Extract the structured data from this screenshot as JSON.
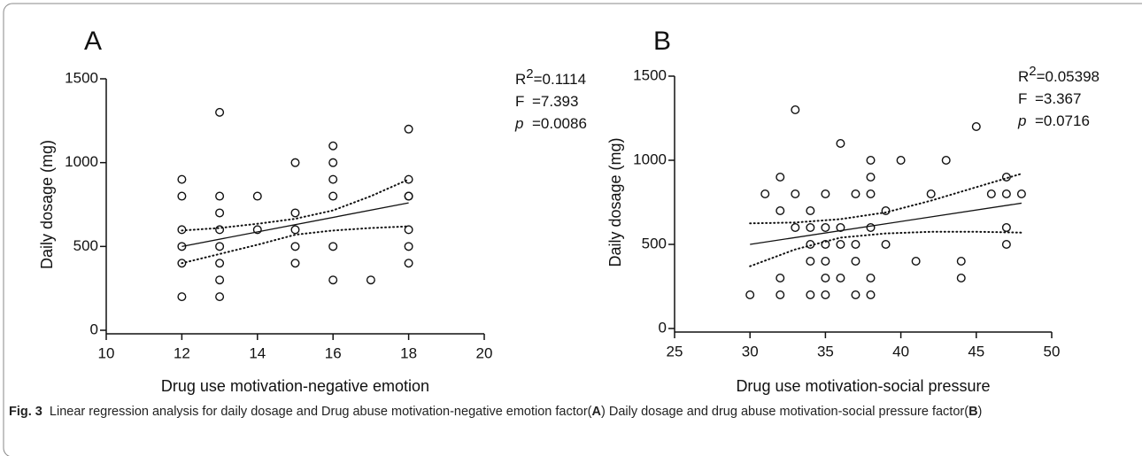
{
  "chart_data": [
    {
      "type": "scatter",
      "panel": "A",
      "x_label": "Drug use motivation-negative emotion",
      "y_label": "Daily dosage (mg)",
      "xlim": [
        10,
        20
      ],
      "ylim": [
        0,
        1500
      ],
      "xticks": [
        10,
        12,
        14,
        16,
        18,
        20
      ],
      "yticks": [
        0,
        500,
        1000,
        1500
      ],
      "stats": [
        {
          "symbol": "R",
          "sup": "2",
          "value": "=0.1114"
        },
        {
          "symbol": "F",
          "value": "=7.393"
        },
        {
          "symbol": "p",
          "italic": true,
          "value": "=0.0086"
        }
      ],
      "series": [
        {
          "x": [
            12,
            12,
            12,
            12,
            12,
            12,
            13,
            13,
            13,
            13,
            13,
            13,
            13,
            13,
            14,
            14,
            15,
            15,
            15,
            15,
            15,
            16,
            16,
            16,
            16,
            16,
            16,
            17,
            18,
            18,
            18,
            18,
            18,
            18,
            18
          ],
          "values": [
            900,
            800,
            600,
            500,
            400,
            200,
            1300,
            800,
            700,
            600,
            500,
            400,
            300,
            200,
            800,
            600,
            1000,
            700,
            600,
            500,
            400,
            1100,
            1000,
            900,
            800,
            500,
            300,
            300,
            1200,
            900,
            800,
            800,
            600,
            500,
            400
          ]
        }
      ],
      "fit": {
        "x": [
          12,
          18
        ],
        "values": [
          500,
          760
        ]
      },
      "ci_upper": {
        "x": [
          12,
          13,
          14,
          15,
          16,
          17,
          18
        ],
        "values": [
          595,
          610,
          635,
          665,
          715,
          800,
          900
        ]
      },
      "ci_lower": {
        "x": [
          12,
          13,
          14,
          15,
          16,
          17,
          18
        ],
        "values": [
          400,
          455,
          510,
          570,
          595,
          610,
          620
        ]
      }
    },
    {
      "type": "scatter",
      "panel": "B",
      "x_label": "Drug use motivation-social pressure",
      "y_label": "Daily dosage (mg)",
      "xlim": [
        25,
        50
      ],
      "ylim": [
        0,
        1500
      ],
      "xticks": [
        25,
        30,
        35,
        40,
        45,
        50
      ],
      "yticks": [
        0,
        500,
        1000,
        1500
      ],
      "stats": [
        {
          "symbol": "R",
          "sup": "2",
          "value": "=0.05398"
        },
        {
          "symbol": "F",
          "value": "=3.367"
        },
        {
          "symbol": "p",
          "italic": true,
          "value": "=0.0716"
        }
      ],
      "series": [
        {
          "x": [
            30,
            31,
            32,
            32,
            32,
            32,
            33,
            33,
            33,
            34,
            34,
            34,
            34,
            34,
            35,
            35,
            35,
            35,
            35,
            35,
            36,
            36,
            36,
            36,
            37,
            37,
            37,
            37,
            38,
            38,
            38,
            38,
            38,
            38,
            39,
            39,
            40,
            41,
            42,
            43,
            44,
            44,
            45,
            46,
            47,
            47,
            47,
            47,
            48
          ],
          "values": [
            200,
            800,
            900,
            700,
            300,
            200,
            1300,
            800,
            600,
            700,
            600,
            500,
            400,
            200,
            800,
            600,
            500,
            400,
            300,
            200,
            1100,
            600,
            500,
            300,
            800,
            500,
            400,
            200,
            1000,
            900,
            800,
            600,
            300,
            200,
            700,
            500,
            1000,
            400,
            800,
            1000,
            400,
            300,
            1200,
            800,
            900,
            800,
            600,
            500,
            800
          ]
        }
      ],
      "fit": {
        "x": [
          30,
          48
        ],
        "values": [
          500,
          745
        ]
      },
      "ci_upper": {
        "x": [
          30,
          33,
          36,
          39,
          42,
          45,
          48
        ],
        "values": [
          625,
          630,
          650,
          690,
          760,
          840,
          920
        ]
      },
      "ci_lower": {
        "x": [
          30,
          33,
          36,
          39,
          42,
          45,
          48
        ],
        "values": [
          370,
          470,
          540,
          565,
          575,
          575,
          570
        ]
      }
    }
  ],
  "caption": [
    {
      "text": "Fig. 3",
      "bold": true
    },
    {
      "text": "  Linear regression analysis for daily dosage and Drug abuse motivation-negative emotion factor("
    },
    {
      "text": "A",
      "bold": true
    },
    {
      "text": ") Daily dosage and drug abuse motivation-social pressure factor("
    },
    {
      "text": "B",
      "bold": true
    },
    {
      "text": ")"
    }
  ]
}
